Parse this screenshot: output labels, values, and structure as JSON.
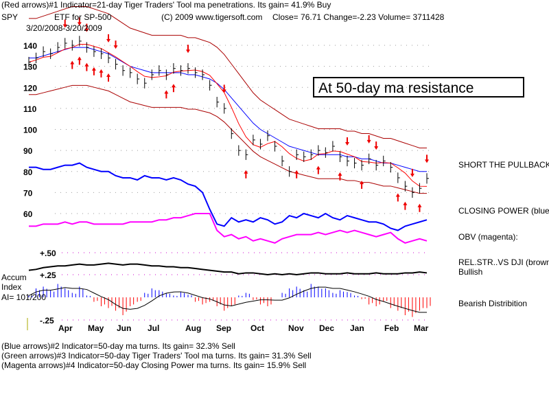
{
  "header": {
    "line1": "(Red arrows)#1 Indicator=21-day Tiger Traders' Tool ma penetrations. Its gain= 41.9% Buy",
    "symbol": "SPY",
    "desc": "ETF for SP-500",
    "copyright": "(C) 2009 www.tigersoft.com",
    "quote": "Close=  76.71  Change=-2.23  Volume= 3711428",
    "range": "3/20/2008-3/20/2009"
  },
  "annotation": "At 50-day ma resistance",
  "side_labels": {
    "short": "SHORT THE PULLBACK",
    "cp": "CLOSING POWER (blue)",
    "obv": "OBV (magenta):",
    "rel": "REL.STR..VS DJI (brown)",
    "bullish": "Bullish",
    "bearish": "Bearish Distribition"
  },
  "accum_label": {
    "l1": "Accum",
    "l2": "Index",
    "l3": "AI= 101/200"
  },
  "footer": [
    "(Blue arrows)#2 Indicator=50-day ma turns. Its gain= 32.3% Sell",
    "(Green arrows)#3 Indicator=50-day Tiger Traders' Tool ma turns. Its gain= 31.3% Sell",
    "(Magenta arrows)#4 Indicator=50-day Closing Power ma turns. Its gain= 15.9% Sell"
  ],
  "chart_data": {
    "type": "line",
    "title": "SPY ETF for SP-500",
    "y_ticks": [
      140,
      130,
      120,
      110,
      100,
      90,
      80,
      70,
      60
    ],
    "ind_ticks": [
      "+.50",
      "+.25",
      "-.25"
    ],
    "x_labels": [
      "Apr",
      "May",
      "Jun",
      "Jul",
      "Aug",
      "Sep",
      "Oct",
      "Nov",
      "Dec",
      "Jan",
      "Feb",
      "Mar"
    ],
    "price": [
      132,
      134,
      137,
      136,
      139,
      141,
      140,
      142,
      139,
      137,
      136,
      134,
      131,
      128,
      127,
      124,
      122,
      126,
      128,
      126,
      129,
      128,
      129,
      127,
      126,
      121,
      113,
      110,
      98,
      90,
      88,
      95,
      93,
      97,
      92,
      85,
      80,
      88,
      87,
      88,
      90,
      89,
      92,
      87,
      85,
      84,
      83,
      86,
      83,
      85,
      82,
      77,
      73,
      70,
      72,
      76.7
    ],
    "ma50": [
      134,
      134,
      135,
      136,
      137,
      138,
      139,
      139,
      139,
      138,
      137,
      136,
      134,
      132,
      130,
      129,
      128,
      127,
      127,
      127,
      127,
      127,
      126,
      126,
      125,
      124,
      122,
      119,
      115,
      111,
      107,
      103,
      100,
      98,
      96,
      94,
      92,
      91,
      90,
      89,
      88,
      88,
      88,
      88,
      87,
      87,
      86,
      86,
      85,
      84,
      84,
      83,
      82,
      81,
      80,
      80
    ],
    "arrows_down": [
      5,
      7,
      8,
      11,
      12,
      22,
      27,
      44,
      47,
      48,
      53,
      55
    ],
    "arrows_up": [
      6,
      7,
      8,
      9,
      10,
      11,
      19,
      20,
      30,
      37,
      40,
      43,
      46,
      51,
      52,
      54
    ],
    "closing_power": [
      82,
      82,
      81,
      81,
      82,
      83,
      83,
      84,
      82,
      81,
      80,
      80,
      78,
      77,
      77,
      76,
      78,
      77,
      77,
      76,
      77,
      76,
      74,
      73,
      70,
      62,
      55,
      54,
      58,
      56,
      57,
      56,
      58,
      57,
      55,
      56,
      59,
      58,
      60,
      59,
      58,
      60,
      58,
      57,
      59,
      58,
      57,
      56,
      56,
      55,
      53,
      52,
      54,
      55,
      56,
      57
    ],
    "obv": [
      54,
      54,
      55,
      55,
      55,
      56,
      55,
      56,
      56,
      55,
      55,
      55,
      55,
      55,
      56,
      56,
      56,
      56,
      57,
      57,
      58,
      58,
      59,
      60,
      60,
      60,
      52,
      49,
      50,
      48,
      49,
      47,
      48,
      47,
      46,
      48,
      49,
      50,
      50,
      50,
      51,
      50,
      51,
      52,
      51,
      52,
      51,
      50,
      49,
      50,
      51,
      48,
      46,
      47,
      48,
      47
    ],
    "rel_str": [
      0.3,
      0.31,
      0.33,
      0.34,
      0.35,
      0.35,
      0.36,
      0.37,
      0.36,
      0.36,
      0.37,
      0.38,
      0.37,
      0.36,
      0.37,
      0.37,
      0.36,
      0.35,
      0.35,
      0.34,
      0.34,
      0.33,
      0.33,
      0.32,
      0.31,
      0.3,
      0.29,
      0.28,
      0.28,
      0.26,
      0.27,
      0.27,
      0.26,
      0.25,
      0.26,
      0.25,
      0.26,
      0.25,
      0.26,
      0.27,
      0.27,
      0.26,
      0.26,
      0.26,
      0.27,
      0.26,
      0.26,
      0.26,
      0.27,
      0.26,
      0.26,
      0.26,
      0.27,
      0.27,
      0.28,
      0.27
    ],
    "accum": [
      0.02,
      0.1,
      0.12,
      0.08,
      0.15,
      0.1,
      0.05,
      0.12,
      0.02,
      -0.05,
      -0.1,
      -0.12,
      -0.15,
      -0.2,
      -0.1,
      -0.05,
      0.05,
      0.1,
      0.08,
      0.05,
      0.02,
      0.06,
      0.03,
      -0.05,
      -0.08,
      -0.05,
      -0.1,
      -0.15,
      -0.1,
      0.02,
      0.05,
      -0.03,
      -0.08,
      -0.1,
      0.0,
      0.05,
      0.1,
      0.12,
      0.08,
      0.15,
      0.12,
      0.1,
      0.05,
      0.08,
      0.06,
      0.02,
      -0.02,
      -0.08,
      -0.1,
      -0.05,
      -0.12,
      -0.15,
      -0.2,
      -0.22,
      -0.15,
      -0.12
    ]
  }
}
